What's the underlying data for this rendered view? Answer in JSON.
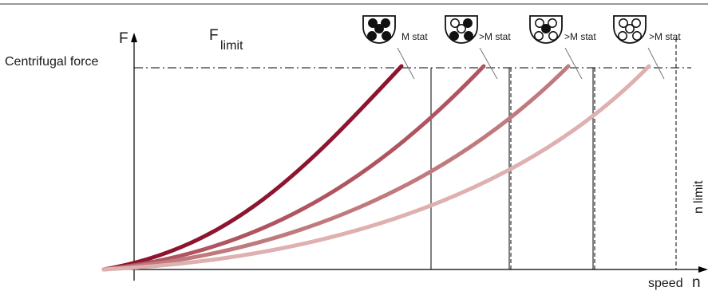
{
  "diagram": {
    "y_axis_symbol": "F",
    "y_axis_label": "Centrifugal force",
    "x_axis_label": "speed",
    "x_axis_symbol": "n",
    "f_limit": {
      "main": "F",
      "sub": "limit"
    },
    "n_limit": {
      "main": "n",
      "sub": "limit"
    },
    "loading_labels": [
      "M stat",
      ">M stat",
      ">M stat",
      ">M stat"
    ],
    "curve_colors": [
      "#8c1530",
      "#b05560",
      "#c07a7d",
      "#dfb0b0"
    ],
    "loading_icons": [
      {
        "name": "rotor-full-loading-icon",
        "filled_positions": [
          1,
          2,
          3,
          4,
          5
        ]
      },
      {
        "name": "rotor-loading-2-icon",
        "filled_positions": [
          2,
          4,
          5
        ]
      },
      {
        "name": "rotor-loading-3-icon",
        "filled_positions": [
          3
        ]
      },
      {
        "name": "rotor-loading-4-icon",
        "filled_positions": []
      }
    ]
  }
}
